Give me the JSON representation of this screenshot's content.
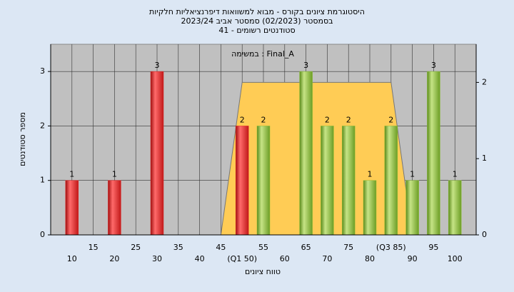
{
  "chart_data": {
    "type": "bar",
    "title": [
      "היסטוגרמת ציונים בקורס - מבוא למשוואות דיפרנציאליות חלקיות",
      "בסמסטר  (02/2023)  סמסטר אביב 2023/24",
      "סטודנטים רשומים - 41"
    ],
    "annotation": "במשימה : Final_A",
    "y_label": "מספר סטודנטים",
    "x_label": "טווח ציונים",
    "x": [
      10,
      20,
      30,
      50,
      55,
      65,
      70,
      75,
      80,
      85,
      90,
      95,
      100
    ],
    "values": [
      1,
      1,
      3,
      2,
      2,
      3,
      2,
      2,
      1,
      2,
      1,
      3,
      1
    ],
    "colors": [
      "#e02828",
      "#e02828",
      "#e02828",
      "#e02828",
      "#8cbf3a",
      "#8cbf3a",
      "#8cbf3a",
      "#8cbf3a",
      "#8cbf3a",
      "#8cbf3a",
      "#8cbf3a",
      "#8cbf3a",
      "#8cbf3a"
    ],
    "area": {
      "axis": "y2",
      "color": "#ffcc55",
      "x": [
        45,
        50,
        85,
        90
      ],
      "values": [
        0,
        2,
        2,
        0
      ]
    },
    "xlim": [
      5,
      105
    ],
    "xticks": [
      10,
      15,
      20,
      25,
      30,
      35,
      40,
      45,
      {
        "value": 50,
        "label": "(Q1 50)"
      },
      55,
      60,
      65,
      70,
      75,
      80,
      {
        "value": 85,
        "label": "(Q3 85)"
      },
      90,
      95,
      100
    ],
    "ylim": [
      0,
      3.5
    ],
    "yticks": [
      0,
      1,
      2,
      3
    ],
    "y2lim": [
      0,
      2.5
    ],
    "y2ticks": [
      0,
      1,
      2
    ],
    "grid": true
  }
}
